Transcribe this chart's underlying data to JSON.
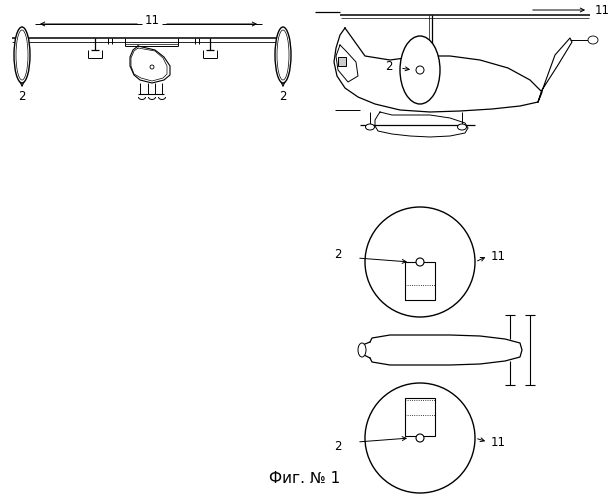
{
  "bg_color": "#ffffff",
  "lc": "#000000",
  "fig_width": 6.1,
  "fig_height": 5.0,
  "dpi": 100,
  "caption": "Фиг. № 1"
}
